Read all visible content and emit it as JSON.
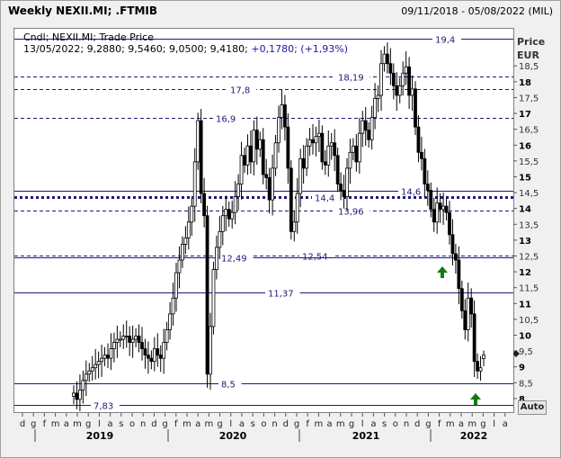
{
  "window": {
    "title": "Weekly NEXII.MI; .FTMIB",
    "date_range": "09/11/2018 - 05/08/2022 (MIL)"
  },
  "info": {
    "line1": "Cndl; NEXII.MI; Trade Price",
    "line2_prefix": "13/05/2022; 9,2880; 9,5460; 9,0500; 9,4180; ",
    "line2_change": "+0,1780; (+1,93%)"
  },
  "axis": {
    "price_label": "Price",
    "unit_label": "EUR",
    "auto_button": "Auto",
    "y_ticks": [
      "8",
      "8,5",
      "9",
      "9,5",
      "10",
      "10,5",
      "11",
      "11,5",
      "12",
      "12,5",
      "13",
      "13,5",
      "14",
      "14,5",
      "15",
      "15,5",
      "16",
      "16,5",
      "17",
      "17,5",
      "18",
      "18,5"
    ],
    "month_labels": [
      "d",
      "g",
      "f",
      "m",
      "a",
      "m",
      "g",
      "l",
      "a",
      "s",
      "o",
      "n",
      "d",
      "g",
      "f",
      "m",
      "a",
      "m",
      "g",
      "l",
      "a",
      "s",
      "o",
      "n",
      "d",
      "g",
      "f",
      "m",
      "a",
      "m",
      "g",
      "l",
      "a",
      "s",
      "o",
      "n",
      "d",
      "g",
      "f",
      "m",
      "a",
      "m",
      "g",
      "l",
      "a"
    ],
    "year_labels": [
      "2019",
      "2020",
      "2021",
      "2022"
    ]
  },
  "chart_data": {
    "type": "candlestick",
    "instrument": "NEXII.MI",
    "frequency": "Weekly",
    "currency": "EUR",
    "ylim": [
      7.6,
      19.7
    ],
    "last_bar": {
      "date": "13/05/2022",
      "open": 9.288,
      "high": 9.546,
      "low": 9.05,
      "close": 9.418,
      "change": 0.178,
      "change_pct": 1.93
    },
    "horizontal_lines": [
      {
        "label": "19,4",
        "value": 19.4,
        "style": "solid"
      },
      {
        "label": "18,19",
        "value": 18.19,
        "style": "dashed"
      },
      {
        "label": "17,8",
        "value": 17.8,
        "style": "dashed"
      },
      {
        "label": "16,9",
        "value": 16.9,
        "style": "dashed"
      },
      {
        "label": "14,6",
        "value": 14.6,
        "style": "solid"
      },
      {
        "label": "14,4",
        "value": 14.4,
        "style": "dotted"
      },
      {
        "label": "13,96",
        "value": 13.96,
        "style": "dashed"
      },
      {
        "label": "12,54",
        "value": 12.54,
        "style": "dashed"
      },
      {
        "label": "12,49",
        "value": 12.49,
        "style": "solid"
      },
      {
        "label": "11,37",
        "value": 11.37,
        "style": "solid"
      },
      {
        "label": "8,5",
        "value": 8.5,
        "style": "solid"
      },
      {
        "label": "7,83",
        "value": 7.83,
        "style": "solid"
      }
    ],
    "closes": [
      8.2,
      8.0,
      8.3,
      8.6,
      8.8,
      8.9,
      9.0,
      9.1,
      9.2,
      9.3,
      9.4,
      9.3,
      9.6,
      9.8,
      9.9,
      9.9,
      10.0,
      10.0,
      9.8,
      9.9,
      10.0,
      9.8,
      9.6,
      9.4,
      9.3,
      9.2,
      9.6,
      9.4,
      9.3,
      9.8,
      10.2,
      10.7,
      11.2,
      12.0,
      12.4,
      12.9,
      13.1,
      13.6,
      14.1,
      15.5,
      16.8,
      14.5,
      13.8,
      8.8,
      10.3,
      12.1,
      12.8,
      13.3,
      13.8,
      14.0,
      13.7,
      13.9,
      14.4,
      14.8,
      15.7,
      15.4,
      16.0,
      15.5,
      16.5,
      15.9,
      16.2,
      15.1,
      15.0,
      14.3,
      15.3,
      16.1,
      16.9,
      17.3,
      16.6,
      15.3,
      13.3,
      13.6,
      14.5,
      15.6,
      15.3,
      16.0,
      16.2,
      16.1,
      16.3,
      16.4,
      15.5,
      15.4,
      16.0,
      16.1,
      15.7,
      14.8,
      14.6,
      14.4,
      15.3,
      15.8,
      16.0,
      15.5,
      16.4,
      16.8,
      16.5,
      16.2,
      16.9,
      17.5,
      17.6,
      18.6,
      18.9,
      18.6,
      18.3,
      17.9,
      17.6,
      17.9,
      18.3,
      18.5,
      17.6,
      17.8,
      16.6,
      15.8,
      15.6,
      14.8,
      14.6,
      14.0,
      13.6,
      14.2,
      14.0,
      14.1,
      13.9,
      13.2,
      12.6,
      12.4,
      11.5,
      10.8,
      10.2,
      11.2,
      10.7,
      9.2,
      8.9,
      9.0,
      9.4
    ],
    "markers": [
      {
        "type": "up-arrow",
        "near_value": 12.1
      },
      {
        "type": "up-arrow",
        "near_value": 8.3
      }
    ]
  }
}
